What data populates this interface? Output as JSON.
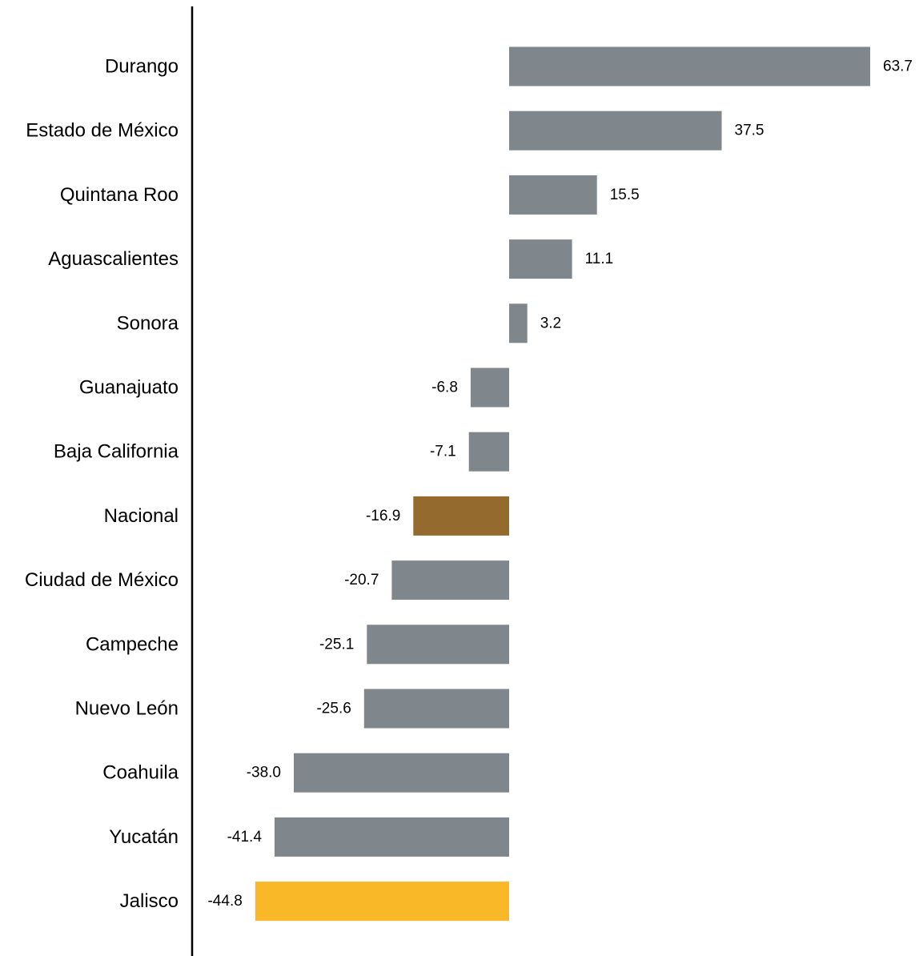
{
  "chart_data": {
    "type": "bar",
    "orientation": "horizontal",
    "title": "",
    "xlabel": "",
    "ylabel": "",
    "grid": false,
    "legend": "none",
    "xlim": [
      -50,
      64
    ],
    "categories": [
      "Durango",
      "Estado de México",
      "Quintana Roo",
      "Aguascalientes",
      "Sonora",
      "Guanajuato",
      "Baja California",
      "Nacional",
      "Ciudad de México",
      "Campeche",
      "Nuevo León",
      "Coahuila",
      "Yucatán",
      "Jalisco"
    ],
    "values": [
      63.7,
      37.5,
      15.5,
      11.1,
      3.2,
      -6.8,
      -7.1,
      -16.9,
      -20.7,
      -25.1,
      -25.6,
      -38.0,
      -41.4,
      -44.8
    ],
    "value_labels": [
      "63.7",
      "37.5",
      "15.5",
      "11.1",
      "3.2",
      "-6.8",
      "-7.1",
      "-16.9",
      "-20.7",
      "-25.1",
      "-25.6",
      "-38.0",
      "-41.4",
      "-44.8"
    ],
    "colors": {
      "default": "#7f878d",
      "Nacional": "#946a2e",
      "Jalisco": "#f8b828"
    }
  }
}
